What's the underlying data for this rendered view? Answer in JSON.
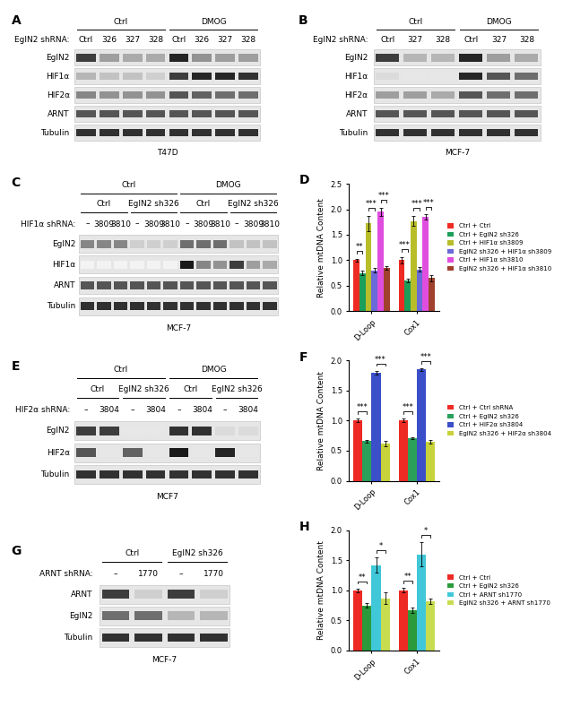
{
  "blots": [
    {
      "letter": "A",
      "header_rows": [
        [
          {
            "label": "Ctrl",
            "span": 4
          },
          {
            "label": "DMOG",
            "span": 4
          }
        ]
      ],
      "lane_row": {
        "label": "EglN2 shRNA:",
        "lanes": [
          "Ctrl",
          "326",
          "327",
          "328",
          "Ctrl",
          "326",
          "327",
          "328"
        ]
      },
      "bands": [
        {
          "name": "EglN2",
          "levels": [
            0.8,
            0.4,
            0.35,
            0.35,
            0.9,
            0.45,
            0.4,
            0.4
          ]
        },
        {
          "name": "HIF1α",
          "levels": [
            0.3,
            0.25,
            0.25,
            0.2,
            0.8,
            0.9,
            0.9,
            0.85
          ]
        },
        {
          "name": "HIF2α",
          "levels": [
            0.5,
            0.45,
            0.45,
            0.45,
            0.7,
            0.65,
            0.6,
            0.6
          ]
        },
        {
          "name": "ARNT",
          "levels": [
            0.7,
            0.7,
            0.7,
            0.7,
            0.7,
            0.7,
            0.7,
            0.7
          ]
        },
        {
          "name": "Tubulin",
          "levels": [
            0.85,
            0.85,
            0.85,
            0.85,
            0.85,
            0.85,
            0.85,
            0.85
          ]
        }
      ],
      "cell_line": "T47D"
    },
    {
      "letter": "B",
      "header_rows": [
        [
          {
            "label": "Ctrl",
            "span": 3
          },
          {
            "label": "DMOG",
            "span": 3
          }
        ]
      ],
      "lane_row": {
        "label": "EglN2 shRNA:",
        "lanes": [
          "Ctrl",
          "327",
          "328",
          "Ctrl",
          "327",
          "328"
        ]
      },
      "bands": [
        {
          "name": "EglN2",
          "levels": [
            0.8,
            0.3,
            0.3,
            0.9,
            0.4,
            0.35
          ]
        },
        {
          "name": "HIF1α",
          "levels": [
            0.15,
            0.1,
            0.1,
            0.9,
            0.7,
            0.6
          ]
        },
        {
          "name": "HIF2α",
          "levels": [
            0.4,
            0.4,
            0.35,
            0.7,
            0.6,
            0.6
          ]
        },
        {
          "name": "ARNT",
          "levels": [
            0.7,
            0.7,
            0.7,
            0.7,
            0.7,
            0.7
          ]
        },
        {
          "name": "Tubulin",
          "levels": [
            0.85,
            0.85,
            0.85,
            0.85,
            0.85,
            0.85
          ]
        }
      ],
      "cell_line": "MCF-7"
    },
    {
      "letter": "C",
      "header_rows": [
        [
          {
            "label": "Ctrl",
            "span": 6
          },
          {
            "label": "DMOG",
            "span": 6
          }
        ],
        [
          {
            "label": "Ctrl",
            "span": 3
          },
          {
            "label": "EglN2 sh326",
            "span": 3
          },
          {
            "label": "Ctrl",
            "span": 3
          },
          {
            "label": "EglN2 sh326",
            "span": 3
          }
        ]
      ],
      "lane_row": {
        "label": "HIF1α shRNA:",
        "lanes": [
          "–",
          "3809",
          "3810",
          "–",
          "3809",
          "3810",
          "–",
          "3809",
          "3810",
          "–",
          "3809",
          "3810"
        ]
      },
      "bands": [
        {
          "name": "EglN2",
          "levels": [
            0.5,
            0.5,
            0.5,
            0.2,
            0.2,
            0.2,
            0.6,
            0.6,
            0.6,
            0.25,
            0.25,
            0.25
          ]
        },
        {
          "name": "HIF1α",
          "levels": [
            0.05,
            0.05,
            0.05,
            0.05,
            0.05,
            0.05,
            0.95,
            0.5,
            0.45,
            0.8,
            0.4,
            0.35
          ]
        },
        {
          "name": "ARNT",
          "levels": [
            0.7,
            0.7,
            0.7,
            0.7,
            0.7,
            0.7,
            0.7,
            0.7,
            0.7,
            0.7,
            0.7,
            0.7
          ]
        },
        {
          "name": "Tubulin",
          "levels": [
            0.85,
            0.85,
            0.85,
            0.85,
            0.85,
            0.85,
            0.85,
            0.85,
            0.85,
            0.85,
            0.85,
            0.85
          ]
        }
      ],
      "cell_line": "MCF-7"
    },
    {
      "letter": "E",
      "header_rows": [
        [
          {
            "label": "Ctrl",
            "span": 4
          },
          {
            "label": "DMOG",
            "span": 4
          }
        ],
        [
          {
            "label": "Ctrl",
            "span": 2
          },
          {
            "label": "EglN2 sh326",
            "span": 2
          },
          {
            "label": "Ctrl",
            "span": 2
          },
          {
            "label": "EglN2 sh326",
            "span": 2
          }
        ]
      ],
      "lane_row": {
        "label": "HIF2α shRNA:",
        "lanes": [
          "–",
          "3804",
          "–",
          "3804",
          "–",
          "3804",
          "–",
          "3804"
        ]
      },
      "bands": [
        {
          "name": "EglN2",
          "levels": [
            0.8,
            0.8,
            0.1,
            0.1,
            0.85,
            0.85,
            0.15,
            0.15
          ]
        },
        {
          "name": "HIF2α",
          "levels": [
            0.7,
            0.1,
            0.65,
            0.1,
            0.95,
            0.1,
            0.9,
            0.1
          ]
        },
        {
          "name": "Tubulin",
          "levels": [
            0.85,
            0.85,
            0.85,
            0.85,
            0.85,
            0.85,
            0.85,
            0.85
          ]
        }
      ],
      "cell_line": "MCF7"
    },
    {
      "letter": "G",
      "header_rows": [
        [
          {
            "label": "Ctrl",
            "span": 2
          },
          {
            "label": "EglN2 sh326",
            "span": 2
          }
        ]
      ],
      "lane_row": {
        "label": "ARNT shRNA:",
        "lanes": [
          "–",
          "1770",
          "–",
          "1770"
        ]
      },
      "bands": [
        {
          "name": "ARNT",
          "levels": [
            0.8,
            0.2,
            0.8,
            0.2
          ]
        },
        {
          "name": "EglN2",
          "levels": [
            0.6,
            0.6,
            0.3,
            0.3
          ]
        },
        {
          "name": "Tubulin",
          "levels": [
            0.85,
            0.85,
            0.85,
            0.85
          ]
        }
      ],
      "cell_line": "MCF-7"
    }
  ],
  "chart_data": [
    {
      "letter": "D",
      "type": "bar",
      "ylabel": "Relative mtDNA Content",
      "categories": [
        "D-Loop",
        "Cox1"
      ],
      "series": [
        {
          "name": "Ctrl + Ctrl",
          "color": "#ee2a24",
          "values": [
            1.0,
            1.0
          ],
          "errors": [
            0.03,
            0.06
          ]
        },
        {
          "name": "Ctrl + EglN2 sh326",
          "color": "#1b9e5a",
          "values": [
            0.75,
            0.6
          ],
          "errors": [
            0.04,
            0.03
          ]
        },
        {
          "name": "Ctrl + HIF1α sh3809",
          "color": "#b8bd2a",
          "values": [
            1.72,
            1.77
          ],
          "errors": [
            0.15,
            0.1
          ]
        },
        {
          "name": "EglN2 sh326 + HIF1α sh3809",
          "color": "#6a6ad8",
          "values": [
            0.8,
            0.82
          ],
          "errors": [
            0.04,
            0.05
          ]
        },
        {
          "name": "Ctrl + HIF1α sh3810",
          "color": "#e04ee0",
          "values": [
            1.95,
            1.85
          ],
          "errors": [
            0.08,
            0.05
          ]
        },
        {
          "name": "EglN2 sh326 + HIF1α sh3810",
          "color": "#a0412d",
          "values": [
            0.85,
            0.65
          ],
          "errors": [
            0.03,
            0.06
          ]
        }
      ],
      "ylim": [
        0.0,
        2.5
      ],
      "yticks": [
        0.0,
        0.5,
        1.0,
        1.5,
        2.0,
        2.5
      ],
      "legend": "center left",
      "significance": [
        {
          "category": 0,
          "pair": [
            0,
            1
          ],
          "label": "**"
        },
        {
          "category": 0,
          "pair": [
            2,
            3
          ],
          "label": "***"
        },
        {
          "category": 0,
          "pair": [
            4,
            5
          ],
          "label": "***"
        },
        {
          "category": 1,
          "pair": [
            0,
            1
          ],
          "label": "***"
        },
        {
          "category": 1,
          "pair": [
            2,
            3
          ],
          "label": "***"
        },
        {
          "category": 1,
          "pair": [
            4,
            5
          ],
          "label": "***"
        }
      ]
    },
    {
      "letter": "F",
      "type": "bar",
      "ylabel": "Relative mtDNA Content",
      "categories": [
        "D-Loop",
        "Cox1"
      ],
      "series": [
        {
          "name": "Ctrl + Ctrl shRNA",
          "color": "#ee2a24",
          "values": [
            1.0,
            1.0
          ],
          "errors": [
            0.03,
            0.03
          ]
        },
        {
          "name": "Ctrl + EglN2 sh326",
          "color": "#2aa05a",
          "values": [
            0.66,
            0.71
          ],
          "errors": [
            0.02,
            0.02
          ]
        },
        {
          "name": "Ctrl + HIF2α sh3804",
          "color": "#3a4fc8",
          "values": [
            1.8,
            1.85
          ],
          "errors": [
            0.03,
            0.02
          ]
        },
        {
          "name": "EglN2 sh326 + HIF2α sh3804",
          "color": "#c8d23a",
          "values": [
            0.62,
            0.65
          ],
          "errors": [
            0.04,
            0.03
          ]
        }
      ],
      "ylim": [
        0.0,
        2.0
      ],
      "yticks": [
        0.0,
        0.5,
        1.0,
        1.5,
        2.0
      ],
      "legend": "center left",
      "significance": [
        {
          "category": 0,
          "pair": [
            0,
            1
          ],
          "label": "***"
        },
        {
          "category": 0,
          "pair": [
            2,
            3
          ],
          "label": "***"
        },
        {
          "category": 1,
          "pair": [
            0,
            1
          ],
          "label": "***"
        },
        {
          "category": 1,
          "pair": [
            2,
            3
          ],
          "label": "***"
        }
      ]
    },
    {
      "letter": "H",
      "type": "bar",
      "ylabel": "Relative mtDNA Content",
      "categories": [
        "D-Loop",
        "Cox1"
      ],
      "series": [
        {
          "name": "Ctrl + Ctrl",
          "color": "#ee2a24",
          "values": [
            1.0,
            1.0
          ],
          "errors": [
            0.03,
            0.04
          ]
        },
        {
          "name": "Ctrl + EglN2 sh326",
          "color": "#2a9a3a",
          "values": [
            0.75,
            0.67
          ],
          "errors": [
            0.04,
            0.05
          ]
        },
        {
          "name": "Ctrl + ARNT sh1770",
          "color": "#40c8d8",
          "values": [
            1.42,
            1.6
          ],
          "errors": [
            0.13,
            0.2
          ]
        },
        {
          "name": "EglN2 sh326 + ARNT sh1770",
          "color": "#c8dc50",
          "values": [
            0.87,
            0.82
          ],
          "errors": [
            0.1,
            0.05
          ]
        }
      ],
      "ylim": [
        0.0,
        2.0
      ],
      "yticks": [
        0.0,
        0.5,
        1.0,
        1.5,
        2.0
      ],
      "legend": "center left",
      "significance": [
        {
          "category": 0,
          "pair": [
            0,
            1
          ],
          "label": "**"
        },
        {
          "category": 0,
          "pair": [
            2,
            3
          ],
          "label": "*"
        },
        {
          "category": 1,
          "pair": [
            0,
            1
          ],
          "label": "**"
        },
        {
          "category": 1,
          "pair": [
            2,
            3
          ],
          "label": "*"
        }
      ]
    }
  ]
}
